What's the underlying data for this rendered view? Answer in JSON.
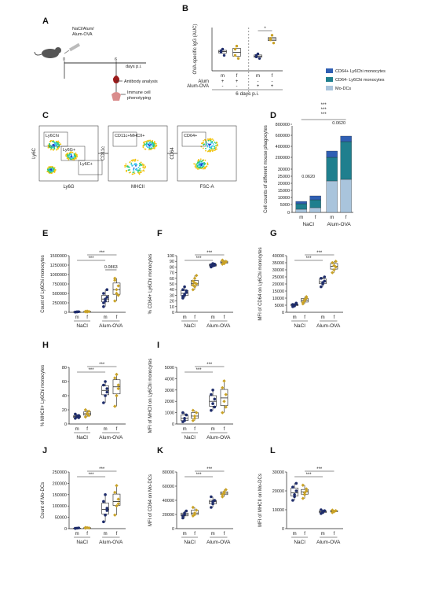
{
  "panels": {
    "A": {
      "label": "A",
      "treatments": [
        "NaCl/Alum/",
        "Alum-OVA"
      ],
      "day_start": "0",
      "day_end": "6",
      "axis_label": "days p.i.",
      "outcomes": [
        "Antibody analysis",
        "Immune cell",
        "phenotyping"
      ]
    },
    "B": {
      "label": "B",
      "ylabel": "OVA-specific IgG (AUC)",
      "row_labels": [
        "Alum",
        "Alum-OVA"
      ],
      "columns": [
        {
          "sex": "m",
          "alum": "+",
          "ova": "-"
        },
        {
          "sex": "f",
          "alum": "+",
          "ova": "-"
        },
        {
          "sex": "m",
          "alum": "-",
          "ova": "+"
        },
        {
          "sex": "f",
          "alum": "-",
          "ova": "+"
        }
      ],
      "footer": "6 days p.i.",
      "sig": "*"
    },
    "C": {
      "label": "C",
      "plots": [
        {
          "x": "Ly6G",
          "y": "Ly6C",
          "gates": [
            "Ly6Chi",
            "Ly6G+",
            "Ly6C+"
          ]
        },
        {
          "x": "MHCII",
          "y": "CD11c",
          "gates": [
            "CD11c+MHCII+"
          ]
        },
        {
          "x": "FSC-A",
          "y": "CD64",
          "gates": [
            "CD64+"
          ]
        }
      ]
    },
    "D": {
      "label": "D",
      "legend": [
        "CD64+ Ly6Chi monocytes",
        "CD64- Ly6Chi monocytes",
        "Mo-DCs"
      ],
      "ylabel": "Cell counts of different mouse phagocytes",
      "sig_top": "***",
      "pval": "0.0620"
    },
    "E": {
      "label": "E",
      "ylabel": "Count of Ly6Chi monocytes",
      "pval": "0.0863"
    },
    "F": {
      "label": "F",
      "ylabel": "% CD64+ Ly6Chi monocytes"
    },
    "G": {
      "label": "G",
      "ylabel": "MFI of CD64 on Ly6Chi monocytes"
    },
    "H": {
      "label": "H",
      "ylabel": "% MHCII+ Ly6Chi monocytes"
    },
    "I": {
      "label": "I",
      "ylabel": "MFI of MHCII on Ly6Chi monocytes"
    },
    "J": {
      "label": "J",
      "ylabel": "Count of Mo-DCs"
    },
    "K": {
      "label": "K",
      "ylabel": "MFI of CD64 on Mo-DCs"
    },
    "L": {
      "label": "L",
      "ylabel": "MFI of MHCII on Mo-DCs"
    }
  },
  "groups": {
    "nacl": "NaCl",
    "alum_ova": "Alum-OVA",
    "male": "m",
    "female": "f"
  },
  "colors": {
    "male": "#1f2d6b",
    "female": "#c9a227",
    "legend": [
      "#2f5fb3",
      "#1f7f8e",
      "#a9c4dc"
    ]
  },
  "chart_data": [
    {
      "panel": "B",
      "type": "scatter",
      "ylabel": "OVA-specific IgG (AUC)",
      "categories": [
        "m Alum",
        "f Alum",
        "m Alum-OVA",
        "f Alum-OVA"
      ],
      "series": [
        {
          "values": [
            [
              1.4,
              1.5,
              1.3,
              1.45
            ],
            [
              1.3,
              1.6,
              1.2,
              1.5
            ],
            [
              1.25,
              1.35,
              1.2,
              1.3
            ],
            [
              1.8,
              1.95,
              1.7,
              1.85
            ]
          ]
        }
      ]
    },
    {
      "panel": "D",
      "type": "bar",
      "ylabel": "Cell counts of different mouse phagocytes",
      "categories": [
        "m NaCl",
        "f NaCl",
        "m Alum-OVA",
        "f Alum-OVA"
      ],
      "yticks": [
        "0",
        "5000",
        "10000",
        "15000",
        "20000",
        "25000",
        "30000",
        "200000",
        "400000",
        "600000",
        "800000"
      ],
      "series": [
        {
          "name": "Mo-DCs",
          "values": [
            3000,
            4500,
            250000,
            300000
          ]
        },
        {
          "name": "CD64- Ly6Chi monocytes",
          "values": [
            6000,
            9000,
            250000,
            330000
          ]
        },
        {
          "name": "CD64+ Ly6Chi monocytes",
          "values": [
            3000,
            5000,
            70000,
            60000
          ]
        }
      ]
    },
    {
      "panel": "E",
      "type": "scatter",
      "ylabel": "Count of Ly6Chi monocytes",
      "yticks": [
        "0",
        "250000",
        "500000",
        "750000",
        "1000000",
        "1250000",
        "1500000"
      ],
      "ylim": [
        0,
        1500000
      ],
      "categories": [
        "m NaCl",
        "f NaCl",
        "m Alum-OVA",
        "f Alum-OVA"
      ],
      "series": [
        {
          "values": [
            [
              5000,
              10000,
              15000,
              8000,
              12000
            ],
            [
              15000,
              30000,
              20000,
              25000,
              10000
            ],
            [
              150000,
              300000,
              400000,
              500000,
              350000,
              600000,
              250000
            ],
            [
              300000,
              500000,
              700000,
              850000,
              600000,
              450000,
              900000
            ]
          ]
        }
      ]
    },
    {
      "panel": "F",
      "type": "scatter",
      "ylabel": "% CD64+ Ly6Chi monocytes",
      "yticks": [
        "0",
        "10",
        "20",
        "30",
        "40",
        "50",
        "60",
        "70",
        "80",
        "90",
        "100"
      ],
      "ylim": [
        0,
        100
      ],
      "categories": [
        "m NaCl",
        "f NaCl",
        "m Alum-OVA",
        "f Alum-OVA"
      ],
      "series": [
        {
          "values": [
            [
              25,
              30,
              35,
              40,
              45,
              38,
              28,
              32
            ],
            [
              40,
              45,
              50,
              55,
              60,
              65,
              48,
              52
            ],
            [
              80,
              82,
              85,
              84,
              86,
              83,
              81,
              85
            ],
            [
              85,
              88,
              90,
              92,
              87,
              89,
              91,
              86
            ]
          ]
        }
      ]
    },
    {
      "panel": "G",
      "type": "scatter",
      "ylabel": "MFI of CD64 on Ly6Chi monocytes",
      "yticks": [
        "0",
        "5000",
        "10000",
        "15000",
        "20000",
        "25000",
        "30000",
        "35000",
        "40000"
      ],
      "ylim": [
        0,
        40000
      ],
      "categories": [
        "m NaCl",
        "f NaCl",
        "m Alum-OVA",
        "f Alum-OVA"
      ],
      "series": [
        {
          "values": [
            [
              4000,
              5000,
              6000,
              5500,
              4500,
              6500
            ],
            [
              6000,
              8000,
              10000,
              7000,
              9000,
              11000
            ],
            [
              18000,
              20000,
              22000,
              24000,
              21000,
              25000
            ],
            [
              28000,
              30000,
              32000,
              35000,
              33000,
              36000
            ]
          ]
        }
      ]
    },
    {
      "panel": "H",
      "type": "scatter",
      "ylabel": "% MHCII+ Ly6Chi monocytes",
      "yticks": [
        "0",
        "20",
        "40",
        "60",
        "80"
      ],
      "ylim": [
        0,
        80
      ],
      "categories": [
        "m NaCl",
        "f NaCl",
        "m Alum-OVA",
        "f Alum-OVA"
      ],
      "series": [
        {
          "values": [
            [
              8,
              10,
              12,
              14,
              11,
              9
            ],
            [
              10,
              14,
              18,
              20,
              15,
              12
            ],
            [
              30,
              40,
              50,
              55,
              60,
              45
            ],
            [
              25,
              40,
              55,
              65,
              70,
              50
            ]
          ]
        }
      ]
    },
    {
      "panel": "I",
      "type": "scatter",
      "ylabel": "MFI of MHCII on Ly6Chi monocytes",
      "yticks": [
        "0",
        "1000",
        "2000",
        "3000",
        "4000",
        "5000"
      ],
      "ylim": [
        0,
        5000
      ],
      "categories": [
        "m NaCl",
        "f NaCl",
        "m Alum-OVA",
        "f Alum-OVA"
      ],
      "series": [
        {
          "values": [
            [
              200,
              500,
              800,
              1000,
              300
            ],
            [
              300,
              700,
              1000,
              1200,
              500
            ],
            [
              1200,
              1800,
              2200,
              2600,
              3000,
              1500
            ],
            [
              1000,
              2000,
              2600,
              3200,
              3800,
              1500
            ]
          ]
        }
      ]
    },
    {
      "panel": "J",
      "type": "scatter",
      "ylabel": "Count of Mo-DCs",
      "yticks": [
        "0",
        "50000",
        "100000",
        "150000",
        "200000",
        "250000"
      ],
      "ylim": [
        0,
        250000
      ],
      "categories": [
        "m NaCl",
        "f NaCl",
        "m Alum-OVA",
        "f Alum-OVA"
      ],
      "series": [
        {
          "values": [
            [
              1000,
              2000,
              3000,
              1500
            ],
            [
              2000,
              4000,
              3000,
              5000
            ],
            [
              30000,
              60000,
              90000,
              120000,
              150000,
              80000
            ],
            [
              60000,
              100000,
              130000,
              160000,
              190000,
              110000
            ]
          ]
        }
      ]
    },
    {
      "panel": "K",
      "type": "scatter",
      "ylabel": "MFI of CD64 on Mo-DCs",
      "yticks": [
        "0",
        "20000",
        "40000",
        "60000",
        "80000"
      ],
      "ylim": [
        0,
        80000
      ],
      "categories": [
        "m NaCl",
        "f NaCl",
        "m Alum-OVA",
        "f Alum-OVA"
      ],
      "series": [
        {
          "values": [
            [
              15000,
              20000,
              25000,
              18000,
              22000
            ],
            [
              18000,
              22000,
              26000,
              30000,
              20000
            ],
            [
              30000,
              35000,
              40000,
              45000,
              38000
            ],
            [
              45000,
              50000,
              55000,
              48000,
              52000
            ]
          ]
        }
      ]
    },
    {
      "panel": "L",
      "type": "scatter",
      "ylabel": "MFI of MHCII on Mo-DCs",
      "yticks": [
        "0",
        "10000",
        "20000",
        "30000"
      ],
      "ylim": [
        0,
        30000
      ],
      "categories": [
        "m NaCl",
        "f NaCl",
        "m Alum-OVA",
        "f Alum-OVA"
      ],
      "series": [
        {
          "values": [
            [
              15000,
              18000,
              20000,
              22000,
              17000,
              24000
            ],
            [
              16000,
              19000,
              21000,
              23000,
              18000,
              20000
            ],
            [
              8000,
              9000,
              9500,
              10000,
              8500
            ],
            [
              8500,
              9000,
              9500,
              9800,
              9200
            ]
          ]
        }
      ]
    }
  ]
}
